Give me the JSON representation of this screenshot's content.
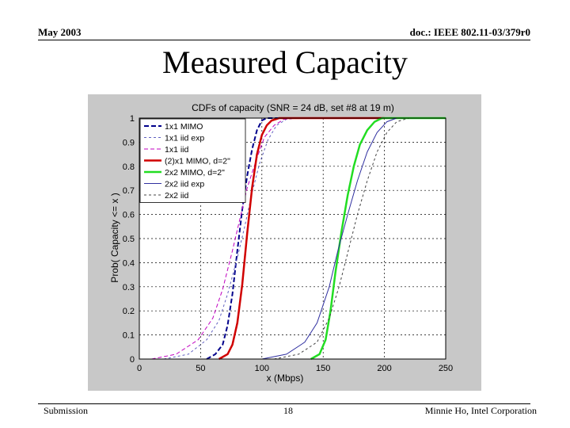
{
  "slide": {
    "date": "May 2003",
    "doc_id": "doc.: IEEE 802.11-03/379r0",
    "title": "Measured Capacity",
    "footer_left": "Submission",
    "page_number": "18",
    "footer_right": "Minnie Ho, Intel Corporation"
  },
  "colors": {
    "plot_bg": "#c8c8c8",
    "axes_bg": "#ffffff",
    "grid": "#000000"
  },
  "chart_data": {
    "type": "line",
    "title": "CDFs of capacity (SNR = 24 dB, set #8 at 19 m)",
    "xlabel": "x (Mbps)",
    "ylabel": "Prob( Capacity <= x )",
    "xlim": [
      0,
      250
    ],
    "ylim": [
      0,
      1
    ],
    "xticks": [
      "0",
      "50",
      "100",
      "150",
      "200",
      "250"
    ],
    "yticks": [
      "0",
      "0.1",
      "0.2",
      "0.3",
      "0.4",
      "0.5",
      "0.6",
      "0.7",
      "0.8",
      "0.9",
      "1"
    ],
    "grid": true,
    "legend_position": "top-left",
    "series": [
      {
        "name": "1x1 MIMO",
        "color": "#00008b",
        "dash": "6,3",
        "width": 2,
        "x": [
          55,
          62,
          68,
          72,
          76,
          80,
          84,
          88,
          92,
          96,
          100,
          104,
          110,
          200
        ],
        "y": [
          0,
          0.02,
          0.06,
          0.14,
          0.27,
          0.45,
          0.62,
          0.76,
          0.87,
          0.95,
          0.99,
          1,
          1,
          1
        ]
      },
      {
        "name": "1x1 iid exp",
        "color": "#6060c0",
        "dash": "3,3",
        "width": 1,
        "x": [
          20,
          40,
          55,
          65,
          72,
          80,
          86,
          92,
          98,
          105,
          112,
          120,
          130
        ],
        "y": [
          0,
          0.02,
          0.08,
          0.16,
          0.27,
          0.42,
          0.55,
          0.69,
          0.81,
          0.91,
          0.97,
          0.995,
          1
        ]
      },
      {
        "name": "1x1 iid",
        "color": "#c000c0",
        "dash": "5,3",
        "width": 1,
        "x": [
          10,
          30,
          48,
          60,
          68,
          76,
          82,
          88,
          95,
          102,
          110,
          118,
          128
        ],
        "y": [
          0,
          0.02,
          0.08,
          0.17,
          0.29,
          0.45,
          0.58,
          0.71,
          0.82,
          0.92,
          0.97,
          0.995,
          1
        ]
      },
      {
        "name": "(2)x1 MIMO, d=2\"",
        "color": "#d00000",
        "dash": "",
        "width": 2.5,
        "x": [
          65,
          72,
          76,
          80,
          84,
          88,
          92,
          96,
          100,
          104,
          108,
          114,
          200
        ],
        "y": [
          0,
          0.02,
          0.06,
          0.15,
          0.31,
          0.52,
          0.71,
          0.85,
          0.93,
          0.97,
          0.99,
          1,
          1
        ]
      },
      {
        "name": "2x2 MIMO, d=2\"",
        "color": "#22dd22",
        "dash": "",
        "width": 2.5,
        "x": [
          140,
          147,
          152,
          156,
          160,
          165,
          170,
          175,
          180,
          186,
          192,
          198,
          260
        ],
        "y": [
          0,
          0.02,
          0.08,
          0.2,
          0.36,
          0.53,
          0.68,
          0.8,
          0.89,
          0.95,
          0.985,
          1,
          1
        ]
      },
      {
        "name": "2x2 iid exp",
        "color": "#3030a0",
        "dash": "",
        "width": 1,
        "x": [
          100,
          120,
          135,
          145,
          155,
          162,
          170,
          178,
          186,
          194,
          202,
          210
        ],
        "y": [
          0,
          0.02,
          0.07,
          0.15,
          0.3,
          0.45,
          0.6,
          0.74,
          0.86,
          0.94,
          0.985,
          1
        ]
      },
      {
        "name": "2x2 iid",
        "color": "#444444",
        "dash": "3,3",
        "width": 1,
        "x": [
          110,
          130,
          145,
          155,
          163,
          170,
          178,
          186,
          194,
          202,
          210,
          220
        ],
        "y": [
          0,
          0.02,
          0.07,
          0.17,
          0.3,
          0.44,
          0.6,
          0.74,
          0.86,
          0.94,
          0.985,
          1
        ]
      }
    ]
  }
}
